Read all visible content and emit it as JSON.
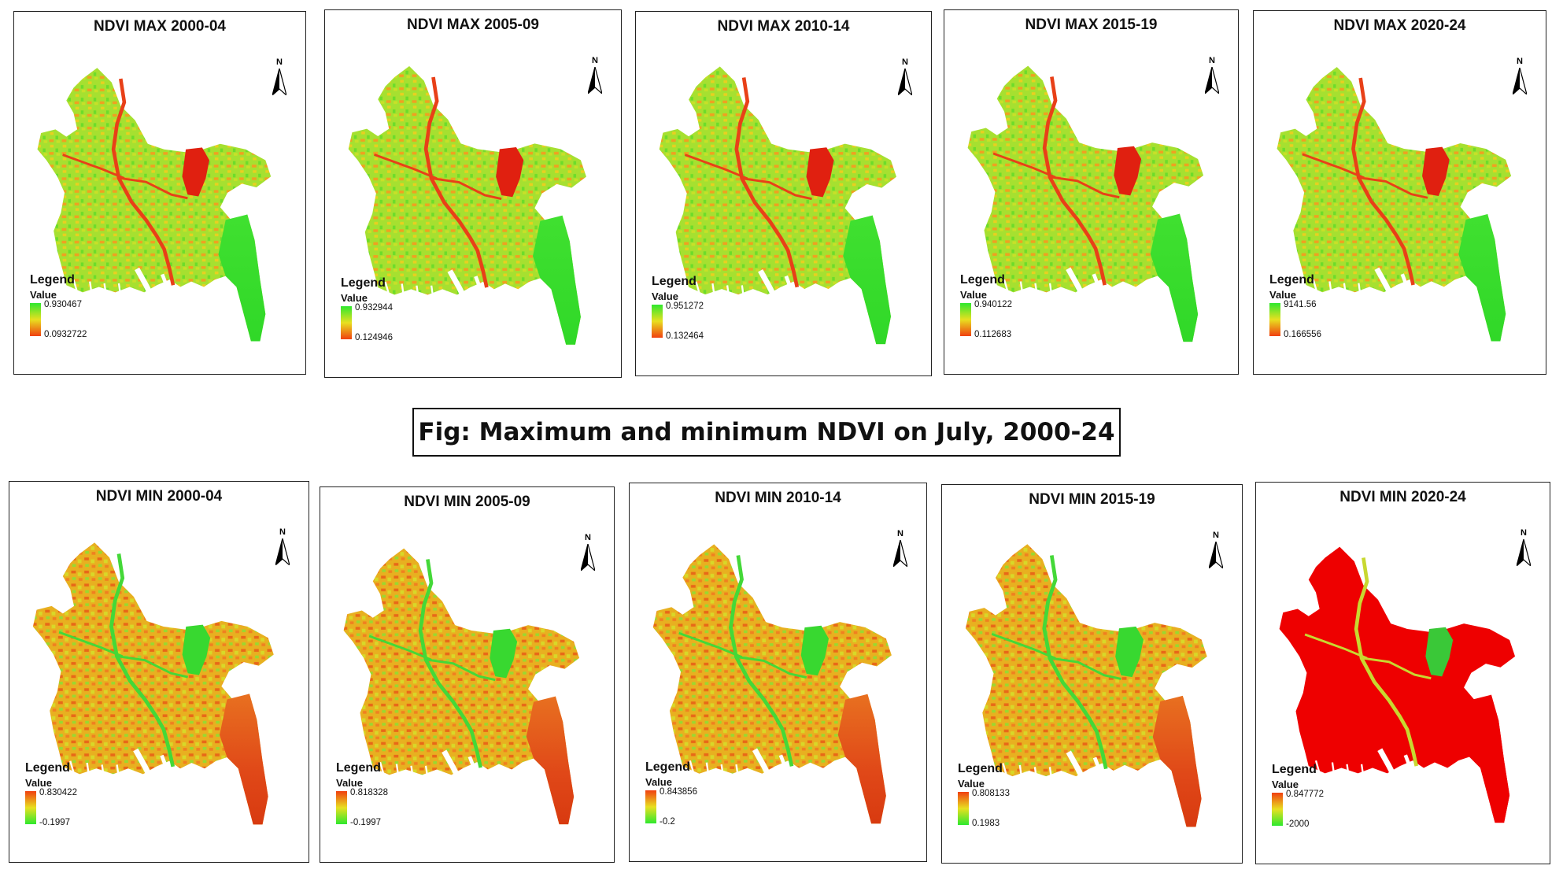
{
  "caption": "Fig: Maximum and minimum NDVI on July, 2000-24",
  "legend_labels": {
    "title": "Legend",
    "sub": "Value"
  },
  "max_panels": [
    {
      "title": "NDVI MAX 2000-04",
      "high": "0.930467",
      "low": "0.0932722",
      "scheme": "max",
      "colors": [
        "#2ee82e",
        "#f04010"
      ]
    },
    {
      "title": "NDVI MAX 2005-09",
      "high": "0.932944",
      "low": "0.124946",
      "scheme": "max",
      "colors": [
        "#2ee82e",
        "#f04010"
      ]
    },
    {
      "title": "NDVI MAX 2010-14",
      "high": "0.951272",
      "low": "0.132464",
      "scheme": "max",
      "colors": [
        "#2ee82e",
        "#f04010"
      ]
    },
    {
      "title": "NDVI MAX 2015-19",
      "high": "0.940122",
      "low": "0.112683",
      "scheme": "max",
      "colors": [
        "#2ee82e",
        "#f04010"
      ]
    },
    {
      "title": "NDVI MAX 2020-24",
      "high": "9141.56",
      "low": "0.166556",
      "scheme": "max",
      "colors": [
        "#2ee82e",
        "#f04010"
      ]
    }
  ],
  "min_panels": [
    {
      "title": "NDVI MIN 2000-04",
      "high": "0.830422",
      "low": "-0.1997",
      "scheme": "min",
      "colors": [
        "#f04010",
        "#2ee82e"
      ]
    },
    {
      "title": "NDVI MIN 2005-09",
      "high": "0.818328",
      "low": "-0.1997",
      "scheme": "min",
      "colors": [
        "#f04010",
        "#2ee82e"
      ]
    },
    {
      "title": "NDVI MIN 2010-14",
      "high": "0.843856",
      "low": "-0.2",
      "scheme": "min",
      "colors": [
        "#f04010",
        "#2ee82e"
      ]
    },
    {
      "title": "NDVI MIN 2015-19",
      "high": "0.808133",
      "low": "0.1983",
      "scheme": "min",
      "colors": [
        "#f04010",
        "#2ee82e"
      ]
    },
    {
      "title": "NDVI MIN 2020-24",
      "high": "0.847772",
      "low": "-2000",
      "scheme": "red",
      "colors": [
        "#f04010",
        "#2ee82e"
      ]
    }
  ],
  "north_label": "N"
}
